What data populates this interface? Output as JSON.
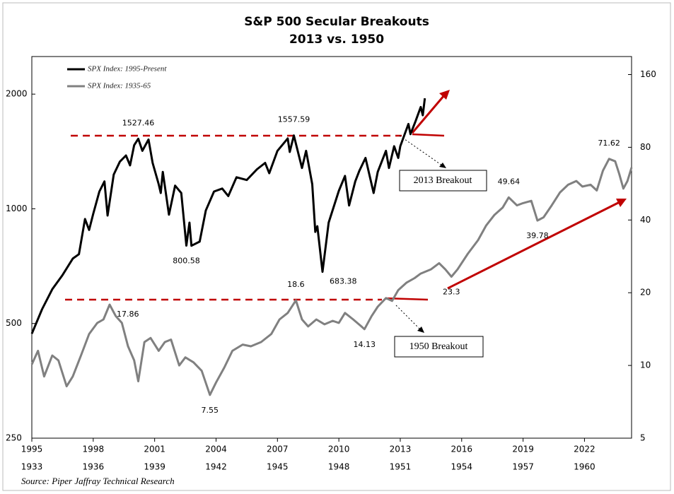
{
  "chart_data": {
    "type": "line",
    "title": "S&P 500 Secular Breakouts",
    "subtitle": "2013 vs. 1950",
    "source": "Source: Piper Jaffray Technical Research",
    "log_scale": true,
    "legend": "top-left",
    "xlim": [
      1995,
      2024.3
    ],
    "xticks": [
      1995,
      1998,
      2001,
      2004,
      2007,
      2010,
      2013,
      2016,
      2019,
      2022
    ],
    "x2lim": [
      1933,
      1962.3
    ],
    "x2ticks": [
      1933,
      1936,
      1939,
      1942,
      1945,
      1948,
      1951,
      1954,
      1957,
      1960
    ],
    "ylim": [
      250,
      2510
    ],
    "yticks": [
      250,
      500,
      1000,
      2000
    ],
    "y2lim": [
      5,
      190
    ],
    "y2ticks": [
      5,
      10,
      20,
      40,
      80,
      160
    ],
    "series": [
      {
        "name": "SPX Index: 1995-Present",
        "color": "#000000",
        "axis": "y",
        "x_axis": "x",
        "x": [
          1995.0,
          1995.5,
          1996.0,
          1996.5,
          1997.0,
          1997.3,
          1997.6,
          1997.8,
          1998.0,
          1998.3,
          1998.55,
          1998.7,
          1999.0,
          1999.3,
          1999.6,
          1999.8,
          2000.0,
          2000.2,
          2000.4,
          2000.7,
          2000.9,
          2001.2,
          2001.3,
          2001.4,
          2001.7,
          2002.0,
          2002.3,
          2002.55,
          2002.7,
          2002.8,
          2003.2,
          2003.5,
          2003.9,
          2004.3,
          2004.6,
          2005.0,
          2005.5,
          2006.0,
          2006.4,
          2006.6,
          2007.0,
          2007.5,
          2007.6,
          2007.8,
          2008.2,
          2008.4,
          2008.7,
          2008.85,
          2008.95,
          2009.2,
          2009.5,
          2010.0,
          2010.3,
          2010.5,
          2010.8,
          2011.0,
          2011.3,
          2011.7,
          2011.9,
          2012.3,
          2012.45,
          2012.7,
          2012.9,
          2013.0,
          2013.4,
          2013.5,
          2013.75,
          2014.0,
          2014.1,
          2014.2
        ],
        "values": [
          470,
          545,
          615,
          670,
          740,
          760,
          940,
          880,
          970,
          1110,
          1180,
          960,
          1230,
          1330,
          1380,
          1300,
          1469,
          1527.46,
          1420,
          1520,
          1320,
          1160,
          1100,
          1250,
          965,
          1150,
          1100,
          800.58,
          920,
          800,
          820,
          990,
          1110,
          1130,
          1080,
          1210,
          1190,
          1270,
          1320,
          1240,
          1420,
          1530,
          1410,
          1557.59,
          1280,
          1420,
          1160,
          870,
          900,
          683.38,
          920,
          1115,
          1220,
          1020,
          1180,
          1258,
          1360,
          1100,
          1250,
          1420,
          1280,
          1460,
          1360,
          1460,
          1670,
          1570,
          1700,
          1850,
          1760,
          1950
        ]
      },
      {
        "name": "SPX Index: 1935-65",
        "color": "#808080",
        "axis": "y2",
        "x_axis": "x2",
        "x": [
          1933.0,
          1933.3,
          1933.6,
          1934.0,
          1934.3,
          1934.7,
          1935.0,
          1935.4,
          1935.8,
          1936.2,
          1936.5,
          1936.8,
          1937.1,
          1937.4,
          1937.7,
          1938.0,
          1938.2,
          1938.5,
          1938.8,
          1939.2,
          1939.5,
          1939.8,
          1940.2,
          1940.5,
          1940.9,
          1941.3,
          1941.7,
          1942.0,
          1942.4,
          1942.8,
          1943.3,
          1943.7,
          1944.2,
          1944.7,
          1945.1,
          1945.5,
          1945.9,
          1946.2,
          1946.5,
          1946.9,
          1947.3,
          1947.7,
          1948.0,
          1948.3,
          1948.7,
          1949.1,
          1949.25,
          1949.6,
          1949.9,
          1950.3,
          1950.6,
          1950.9,
          1951.3,
          1951.7,
          1952.0,
          1952.5,
          1952.9,
          1953.2,
          1953.5,
          1953.8,
          1954.3,
          1954.8,
          1955.2,
          1955.6,
          1956.0,
          1956.3,
          1956.7,
          1957.0,
          1957.4,
          1957.7,
          1958.0,
          1958.4,
          1958.8,
          1959.2,
          1959.6,
          1959.9,
          1960.3,
          1960.6,
          1960.9,
          1961.2,
          1961.5,
          1961.7,
          1961.9,
          1962.1,
          1962.3
        ],
        "values": [
          10.1,
          11.5,
          9.0,
          11,
          10.5,
          8.2,
          9,
          11,
          13.5,
          15,
          15.5,
          17.86,
          16,
          15,
          12,
          10.5,
          8.6,
          12.5,
          13,
          11.5,
          12.5,
          12.8,
          10,
          10.8,
          10.3,
          9.5,
          7.55,
          8.5,
          9.8,
          11.5,
          12.2,
          12,
          12.5,
          13.5,
          15.5,
          16.5,
          18.6,
          15.5,
          14.5,
          15.5,
          14.8,
          15.3,
          15,
          16.5,
          15.5,
          14.5,
          14.13,
          16,
          17.5,
          19,
          18.5,
          20.5,
          22,
          23,
          24,
          25,
          26.5,
          25,
          23.3,
          25,
          29,
          33,
          38,
          42,
          45,
          49.64,
          46,
          47,
          48,
          39.78,
          41,
          46,
          52,
          56,
          58,
          55,
          56,
          53,
          64,
          71.62,
          70,
          62,
          54,
          58,
          66
        ]
      }
    ],
    "annotations": [
      {
        "value": 1527.46,
        "x": 2000.2,
        "axis": "y",
        "position": "above"
      },
      {
        "value": 1557.59,
        "x": 2007.8,
        "axis": "y",
        "position": "above"
      },
      {
        "value": 800.58,
        "x": 2002.55,
        "axis": "y",
        "position": "below"
      },
      {
        "value": 683.38,
        "x": 2009.2,
        "axis": "y",
        "position": "right"
      },
      {
        "value": 17.86,
        "x": 1936.8,
        "axis": "y2",
        "position": "right"
      },
      {
        "value": 18.6,
        "x": 1945.9,
        "axis": "y2",
        "position": "above"
      },
      {
        "value": 14.13,
        "x": 1949.25,
        "axis": "y2",
        "position": "below"
      },
      {
        "value": 7.55,
        "x": 1941.7,
        "axis": "y2",
        "position": "below"
      },
      {
        "value": 23.3,
        "x": 1953.5,
        "axis": "y2",
        "position": "below"
      },
      {
        "value": 49.64,
        "x": 1956.3,
        "axis": "y2",
        "position": "above"
      },
      {
        "value": 39.78,
        "x": 1957.7,
        "axis": "y2",
        "position": "below"
      },
      {
        "value": 71.62,
        "x": 1961.2,
        "axis": "y2",
        "position": "above"
      }
    ],
    "callouts": [
      "2013 Breakout",
      "1950 Breakout"
    ]
  }
}
